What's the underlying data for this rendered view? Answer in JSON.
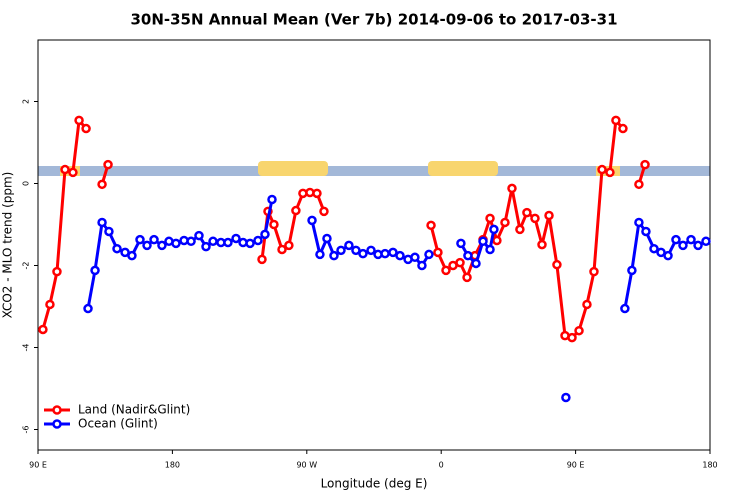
{
  "chart_data": {
    "type": "line",
    "title": "30N-35N Annual Mean (Ver 7b)   2014-09-06 to 2017-03-31",
    "x_label": "Longitude (deg E)",
    "y_label": "XCO2 - MLO trend (ppm)",
    "xlim": [
      90,
      540
    ],
    "ylim": [
      -6.5,
      3.5
    ],
    "xticks": [
      {
        "value": 90,
        "label": "90 E"
      },
      {
        "value": 180,
        "label": "180"
      },
      {
        "value": 270,
        "label": "90 W"
      },
      {
        "value": 360,
        "label": "0"
      },
      {
        "value": 450,
        "label": "90 E"
      },
      {
        "value": 540,
        "label": "180"
      }
    ],
    "yticks": [
      -6,
      -4,
      -2,
      0,
      2
    ],
    "legend": "bottomleft",
    "series": [
      {
        "name": "Land (Nadir&Glint)",
        "color": "#ff0000",
        "x": [
          93.3,
          98.0,
          102.7,
          108.1,
          113.4,
          117.5,
          122.2,
          null,
          132.9,
          136.9,
          null,
          240.0,
          244.0,
          248.0,
          253.4,
          258.0,
          262.7,
          267.4,
          272.1,
          276.8,
          281.5,
          null,
          353.2,
          357.8,
          363.2,
          367.9,
          372.6,
          377.3,
          382.6,
          388.0,
          392.7,
          397.3,
          402.7,
          407.4,
          412.7,
          417.4,
          422.8,
          427.5,
          432.2,
          437.5,
          442.9,
          447.6,
          452.3,
          457.6,
          462.3,
          467.7,
          473.0,
          477.0,
          481.7,
          null,
          492.4,
          496.5
        ],
        "values": [
          -3.56,
          -2.95,
          -2.15,
          0.34,
          0.27,
          1.54,
          1.34,
          null,
          -0.02,
          0.46,
          null,
          -1.85,
          -0.68,
          -1.0,
          -1.61,
          -1.51,
          -0.66,
          -0.24,
          -0.22,
          -0.24,
          -0.68,
          null,
          -1.02,
          -1.68,
          -2.12,
          -2.0,
          -1.93,
          -2.29,
          -1.76,
          -1.37,
          -0.85,
          -1.39,
          -0.95,
          -0.12,
          -1.12,
          -0.71,
          -0.85,
          -1.49,
          -0.78,
          -1.98,
          -3.71,
          -3.76,
          -3.59,
          -2.95,
          -2.15,
          0.34,
          0.27,
          1.54,
          1.34,
          null,
          -0.02,
          0.46
        ]
      },
      {
        "name": "Ocean (Glint)",
        "color": "#0000ff",
        "x": [
          123.5,
          128.2,
          132.9,
          137.5,
          142.9,
          148.3,
          152.9,
          158.3,
          163.0,
          167.7,
          173.0,
          177.7,
          182.4,
          187.8,
          192.5,
          197.8,
          202.5,
          207.2,
          212.5,
          217.2,
          222.6,
          227.3,
          232.0,
          237.3,
          242.0,
          246.7,
          null,
          273.5,
          278.8,
          283.5,
          288.2,
          292.9,
          298.2,
          302.9,
          307.6,
          313.0,
          317.7,
          322.4,
          327.7,
          332.4,
          337.8,
          342.4,
          347.1,
          351.8,
          null,
          373.2,
          377.9,
          383.3,
          388.0,
          392.7,
          395.3,
          null,
          443.5,
          null,
          483.0,
          487.7,
          492.4,
          497.1,
          502.5,
          507.2,
          511.9,
          517.2,
          521.9,
          527.3,
          532.0,
          537.3
        ],
        "values": [
          -3.05,
          -2.12,
          -0.95,
          -1.17,
          -1.59,
          -1.68,
          -1.76,
          -1.37,
          -1.51,
          -1.37,
          -1.51,
          -1.41,
          -1.46,
          -1.39,
          -1.41,
          -1.27,
          -1.54,
          -1.41,
          -1.44,
          -1.44,
          -1.34,
          -1.44,
          -1.46,
          -1.39,
          -1.24,
          -0.39,
          null,
          -0.9,
          -1.73,
          -1.34,
          -1.76,
          -1.63,
          -1.51,
          -1.63,
          -1.71,
          -1.63,
          -1.73,
          -1.71,
          -1.68,
          -1.76,
          -1.85,
          -1.8,
          -2.0,
          -1.73,
          null,
          -1.46,
          -1.76,
          -1.95,
          -1.41,
          -1.61,
          -1.12,
          null,
          -5.22,
          null,
          -3.05,
          -2.12,
          -0.95,
          -1.17,
          -1.59,
          -1.68,
          -1.76,
          -1.37,
          -1.51,
          -1.37,
          -1.51,
          -1.41
        ]
      }
    ]
  }
}
